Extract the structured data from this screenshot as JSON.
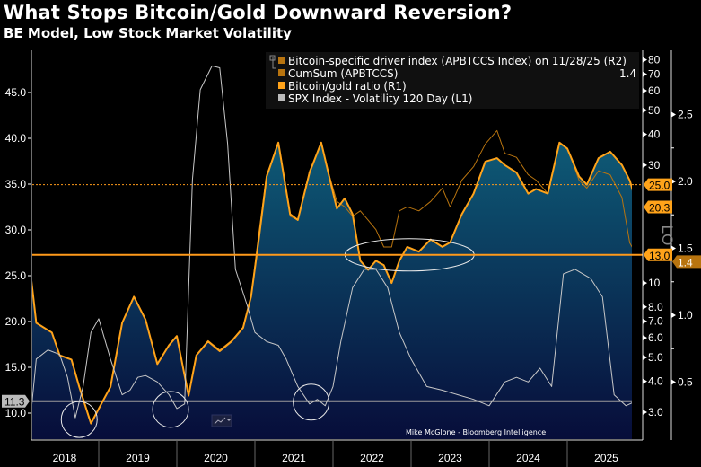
{
  "header": {
    "title": "What Stops Bitcoin/Gold Downward Reversion?",
    "subtitle": "BE Model, Low Stock Market Volatility"
  },
  "chart_data": {
    "type": "line",
    "title": "What Stops Bitcoin/Gold Downward Reversion?",
    "subtitle": "BE Model, Low Stock Market Volatility",
    "x_axis": {
      "type": "date",
      "tick_labels": [
        "2018",
        "2019",
        "2020",
        "2021",
        "2022",
        "2023",
        "2024",
        "2025"
      ],
      "range": [
        "2018-02",
        "2025-11-28"
      ]
    },
    "axes": {
      "L1": {
        "scale": "linear",
        "range": [
          7,
          50
        ],
        "tick_labels": [
          "45.0",
          "40.0",
          "35.0",
          "30.0",
          "25.0",
          "20.0",
          "15.0",
          "10.0"
        ]
      },
      "R1": {
        "scale": "log",
        "label": "LO",
        "range": [
          2.2,
          90
        ],
        "tick_labels": [
          "80",
          "70",
          "60",
          "50",
          "40",
          "30",
          "10",
          "8.0",
          "7.0",
          "6.0",
          "5.0",
          "4.0",
          "3.0"
        ]
      },
      "R2": {
        "scale": "linear",
        "range": [
          0,
          2.9
        ],
        "tick_labels": [
          "2.5",
          "2.0",
          "1.5",
          "1.0",
          "0.5"
        ]
      }
    },
    "grid": false,
    "legend_placement": "top-right",
    "legend": [
      {
        "label": "Bitcoin-specific driver index (APBTCCS Index) on 11/28/25 (R2)",
        "color": "#c07a10"
      },
      {
        "label": "CumSum (APBTCCS)",
        "color": "#c07a10",
        "value": "1.4"
      },
      {
        "label": "Bitcoin/gold ratio (R1)",
        "color": "#ffa31a"
      },
      {
        "label": "SPX Index - Volatility 120 Day (L1)",
        "color": "#bbbbbb"
      }
    ],
    "series": [
      {
        "name": "CumSum (APBTCCS)",
        "axis": "R2",
        "color": "#b8740f",
        "x": [
          2018.1,
          2018.2,
          2018.4,
          2018.5,
          2018.65,
          2018.75,
          2018.9,
          2019.0,
          2019.15,
          2019.3,
          2019.45,
          2019.6,
          2019.75,
          2019.9,
          2020.0,
          2020.15,
          2020.25,
          2020.4,
          2020.55,
          2020.7,
          2020.85,
          2020.95,
          2021.05,
          2021.15,
          2021.3,
          2021.45,
          2021.55,
          2021.7,
          2021.85,
          2021.95,
          2022.05,
          2022.15,
          2022.25,
          2022.35,
          2022.45,
          2022.55,
          2022.65,
          2022.75,
          2022.85,
          2022.95,
          2023.1,
          2023.25,
          2023.4,
          2023.5,
          2023.65,
          2023.8,
          2023.95,
          2024.1,
          2024.2,
          2024.35,
          2024.5,
          2024.6,
          2024.75,
          2024.9,
          2025.0,
          2025.15,
          2025.25,
          2025.4,
          2025.55,
          2025.7,
          2025.8,
          2025.9
        ],
        "values": [
          1.44,
          0.94,
          0.87,
          0.7,
          0.67,
          0.47,
          0.2,
          0.3,
          0.47,
          0.94,
          1.14,
          0.97,
          0.64,
          0.77,
          0.84,
          0.4,
          0.7,
          0.81,
          0.74,
          0.81,
          0.91,
          1.14,
          1.61,
          2.05,
          2.28,
          1.74,
          1.71,
          2.08,
          2.28,
          2.05,
          1.85,
          1.81,
          1.74,
          1.78,
          1.71,
          1.64,
          1.51,
          1.51,
          1.78,
          1.81,
          1.78,
          1.85,
          1.95,
          1.81,
          2.01,
          2.11,
          2.28,
          2.38,
          2.21,
          2.18,
          2.05,
          2.01,
          1.91,
          2.28,
          2.25,
          2.01,
          1.95,
          2.08,
          2.05,
          1.88,
          1.54,
          1.44
        ]
      },
      {
        "name": "Bitcoin/gold ratio (R1)",
        "axis": "R1",
        "color": "#ffa31a",
        "x": [
          2018.1,
          2018.2,
          2018.4,
          2018.5,
          2018.65,
          2018.75,
          2018.9,
          2019.0,
          2019.15,
          2019.3,
          2019.45,
          2019.6,
          2019.75,
          2019.9,
          2020.0,
          2020.15,
          2020.25,
          2020.4,
          2020.55,
          2020.7,
          2020.85,
          2020.95,
          2021.05,
          2021.15,
          2021.3,
          2021.45,
          2021.55,
          2021.7,
          2021.85,
          2021.95,
          2022.05,
          2022.15,
          2022.25,
          2022.35,
          2022.45,
          2022.55,
          2022.65,
          2022.75,
          2022.85,
          2022.95,
          2023.1,
          2023.25,
          2023.4,
          2023.5,
          2023.65,
          2023.8,
          2023.95,
          2024.1,
          2024.2,
          2024.35,
          2024.5,
          2024.6,
          2024.75,
          2024.9,
          2025.0,
          2025.15,
          2025.25,
          2025.4,
          2025.55,
          2025.7,
          2025.8,
          2025.9
        ],
        "values": [
          13,
          6.9,
          6.3,
          5.1,
          4.9,
          3.8,
          2.7,
          3.1,
          3.8,
          6.9,
          8.8,
          7.1,
          4.7,
          5.6,
          6.1,
          3.5,
          5.1,
          5.8,
          5.3,
          5.8,
          6.6,
          8.8,
          15,
          27,
          37,
          19,
          18,
          28,
          37,
          27,
          20,
          22,
          19,
          12.3,
          11.3,
          12.3,
          11.8,
          10,
          12.3,
          14,
          13.4,
          15,
          14,
          14.6,
          19,
          23,
          31,
          32,
          30,
          28,
          23,
          24,
          23,
          37,
          35,
          27,
          25,
          32,
          34,
          30,
          26,
          20.3
        ]
      },
      {
        "name": "SPX Index - Volatility 120 Day (L1)",
        "axis": "L1",
        "color": "#c8c8c8",
        "x": [
          2018.1,
          2018.2,
          2018.35,
          2018.5,
          2018.6,
          2018.7,
          2018.8,
          2018.9,
          2019.0,
          2019.15,
          2019.3,
          2019.4,
          2019.5,
          2019.6,
          2019.75,
          2019.9,
          2020.0,
          2020.1,
          2020.2,
          2020.3,
          2020.45,
          2020.55,
          2020.65,
          2020.75,
          2020.9,
          2021.0,
          2021.15,
          2021.3,
          2021.4,
          2021.55,
          2021.7,
          2021.8,
          2021.9,
          2022.0,
          2022.1,
          2022.25,
          2022.4,
          2022.55,
          2022.7,
          2022.85,
          2023.0,
          2023.2,
          2023.4,
          2023.6,
          2023.8,
          2024.0,
          2024.2,
          2024.35,
          2024.5,
          2024.65,
          2024.8,
          2024.95,
          2025.1,
          2025.3,
          2025.45,
          2025.6,
          2025.75,
          2025.85
        ],
        "values": [
          7.1,
          15.9,
          16.9,
          16.4,
          13.9,
          9.5,
          12.9,
          18.8,
          20.3,
          15.9,
          12.0,
          12.5,
          13.9,
          14.1,
          13.4,
          12.0,
          10.5,
          11.0,
          35.5,
          45.3,
          47.9,
          47.7,
          39.4,
          25.7,
          21.8,
          18.8,
          17.8,
          17.4,
          15.9,
          12.9,
          11.0,
          11.5,
          10.8,
          12.9,
          17.8,
          23.7,
          25.7,
          25.7,
          23.7,
          18.8,
          15.9,
          12.9,
          12.5,
          12.0,
          11.5,
          10.8,
          13.4,
          13.9,
          13.4,
          14.9,
          12.9,
          25.2,
          25.7,
          24.7,
          22.7,
          12.0,
          10.8,
          11.2
        ]
      }
    ],
    "reference_lines": [
      {
        "axis": "R1",
        "value": 25.0,
        "label": "25.0",
        "style": "dotted",
        "color": "#ff9a1a"
      },
      {
        "axis": "R1",
        "value": 13.0,
        "label": "13.0",
        "style": "solid",
        "color": "#ff9a1a"
      },
      {
        "axis": "L1",
        "value": 11.3,
        "label": "11.3",
        "style": "solid",
        "color": "#9a9a9a"
      }
    ],
    "last_value_labels": [
      {
        "axis": "R1",
        "value": 20.3,
        "label": "20.3"
      },
      {
        "axis": "R2",
        "value": 1.4,
        "label": "1.4"
      }
    ],
    "annotations": [
      {
        "type": "circle",
        "x": 2018.75,
        "axis": "L1",
        "y": 9.3
      },
      {
        "type": "circle",
        "x": 2019.92,
        "axis": "L1",
        "y": 10.4
      },
      {
        "type": "circle",
        "x": 2021.72,
        "axis": "L1",
        "y": 11.2
      },
      {
        "type": "ellipse",
        "x": 2022.98,
        "axis": "R1",
        "y": 13.0
      }
    ],
    "credit": "Mike McGlone - Bloomberg Intelligence"
  },
  "colors": {
    "ratio": "#ffa31a",
    "driver": "#b8740f",
    "vol": "#c8c8c8",
    "area_top": "#0e5a76",
    "area_bottom": "#070d3a"
  }
}
